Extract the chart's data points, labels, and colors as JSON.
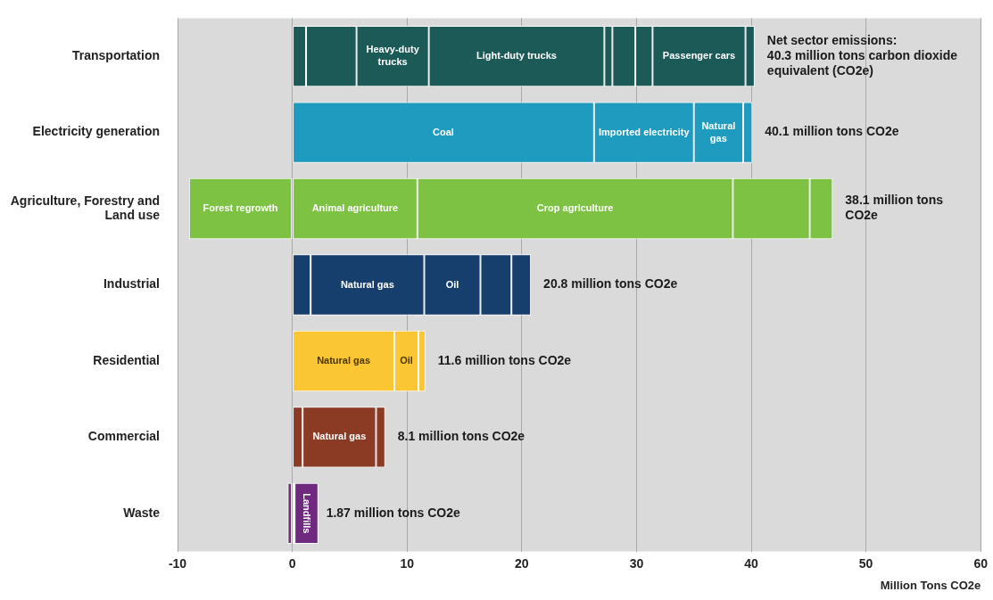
{
  "chart_data": {
    "type": "bar",
    "orientation": "horizontal",
    "stacked": true,
    "grid": "x",
    "categories": [
      "Transportation",
      "Electricity generation",
      "Agriculture, Forestry and Land use",
      "Industrial",
      "Residential",
      "Commercial",
      "Waste"
    ],
    "xlabel": "Million Tons CO2e",
    "xlim": [
      -10,
      60
    ],
    "xticks": [
      -10,
      0,
      10,
      20,
      30,
      40,
      50,
      60
    ],
    "series": [
      {
        "values": [
          1.2,
          26.3,
          -9.0,
          1.6,
          8.9,
          0.9,
          -0.4
        ],
        "colors": [
          "#1b5a56",
          "#1e9bbf",
          "#7dc242",
          "#173f6e",
          "#fbc634",
          "#8b3a24",
          "#6f2a80"
        ],
        "value_labels": [
          null,
          "Coal",
          "Forest regrowth",
          null,
          "Natural gas",
          null,
          null
        ]
      },
      {
        "values": [
          4.4,
          8.7,
          10.9,
          9.9,
          2.1,
          6.4,
          0.2
        ],
        "colors": [
          "#1b5a56",
          "#1e9bbf",
          "#7dc242",
          "#173f6e",
          "#fbc634",
          "#8b3a24",
          "#6f2a80"
        ],
        "value_labels": [
          null,
          "Imported electricity",
          "Animal agriculture",
          "Natural gas",
          "Oil",
          "Natural gas",
          null
        ]
      },
      {
        "values": [
          6.3,
          4.3,
          27.5,
          4.9,
          0.6,
          0.8,
          2.07
        ],
        "colors": [
          "#1b5a56",
          "#1e9bbf",
          "#7dc242",
          "#173f6e",
          "#fbc634",
          "#8b3a24",
          "#6f2a80"
        ],
        "value_labels": [
          "Heavy-duty trucks",
          "Natural gas",
          "Crop agriculture",
          "Oil",
          null,
          null,
          "Landfills"
        ]
      },
      {
        "values": [
          15.3,
          0.8,
          6.7,
          2.7,
          null,
          null,
          null
        ],
        "colors": [
          "#1b5a56",
          "#1e9bbf",
          "#7dc242",
          "#173f6e",
          "#fbc634",
          "#8b3a24",
          "#6f2a80"
        ],
        "value_labels": [
          "Light-duty trucks",
          null,
          null,
          null,
          null,
          null,
          null
        ]
      },
      {
        "values": [
          0.7,
          null,
          2.0,
          1.7,
          null,
          null,
          null
        ],
        "colors": [
          "#1b5a56",
          "#1e9bbf",
          "#7dc242",
          "#173f6e",
          "#fbc634",
          "#8b3a24",
          "#6f2a80"
        ]
      },
      {
        "values": [
          2.0,
          null,
          null,
          null,
          null,
          null,
          null
        ],
        "colors": [
          "#1b5a56",
          "#1e9bbf",
          "#7dc242",
          "#173f6e",
          "#fbc634",
          "#8b3a24",
          "#6f2a80"
        ]
      },
      {
        "values": [
          1.5,
          null,
          null,
          null,
          null,
          null,
          null
        ],
        "colors": [
          "#1b5a56",
          "#1e9bbf",
          "#7dc242",
          "#173f6e",
          "#fbc634",
          "#8b3a24",
          "#6f2a80"
        ]
      },
      {
        "values": [
          8.1,
          null,
          null,
          null,
          null,
          null,
          null
        ],
        "colors": [
          "#1b5a56",
          "#1e9bbf",
          "#7dc242",
          "#173f6e",
          "#fbc634",
          "#8b3a24",
          "#6f2a80"
        ],
        "value_labels": [
          "Passenger cars",
          null,
          null,
          null,
          null,
          null,
          null
        ]
      },
      {
        "values": [
          0.8,
          null,
          null,
          null,
          null,
          null,
          null
        ],
        "colors": [
          "#1b5a56",
          "#1e9bbf",
          "#7dc242",
          "#173f6e",
          "#fbc634",
          "#8b3a24",
          "#6f2a80"
        ]
      }
    ],
    "annotations": [
      {
        "text": "Net sector emissions:\n40.3 million tons carbon dioxide equivalent (CO2e)",
        "x": 40.3,
        "y": "Transportation"
      },
      {
        "text": "40.1 million tons CO2e",
        "x": 40.1,
        "y": "Electricity generation"
      },
      {
        "text": "38.1 million tons CO2e",
        "x": 47.1,
        "y": "Agriculture, Forestry and Land use"
      },
      {
        "text": "20.8 million tons CO2e",
        "x": 20.8,
        "y": "Industrial"
      },
      {
        "text": "11.6 million tons CO2e",
        "x": 11.6,
        "y": "Residential"
      },
      {
        "text": "8.1 million tons CO2e",
        "x": 8.1,
        "y": "Commercial"
      },
      {
        "text": "1.87 million tons CO2e",
        "x": 1.87,
        "y": "Waste"
      }
    ]
  }
}
